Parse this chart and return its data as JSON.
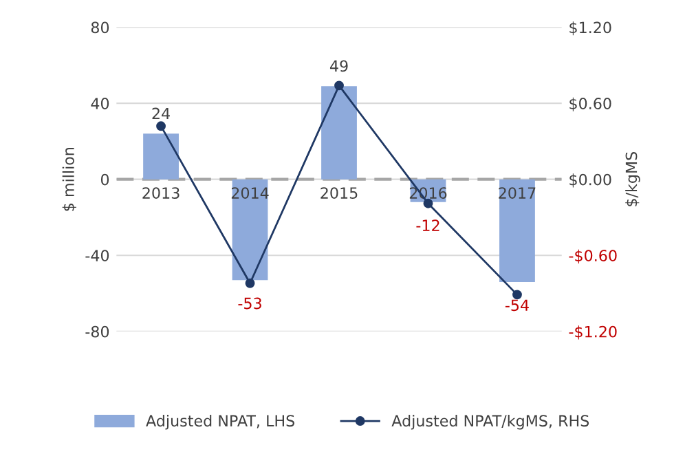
{
  "chart_data": {
    "type": "bar",
    "categories": [
      "2013",
      "2014",
      "2015",
      "2016",
      "2017"
    ],
    "ylabel": "$ million",
    "y2label": "$/kgMS",
    "series": [
      {
        "name": "Adjusted NPAT, LHS",
        "color": "#8eaadb",
        "values": [
          24,
          -53,
          49,
          -12,
          -54
        ],
        "data_labels": true
      },
      {
        "name": "Adjusted NPAT/kgMS, RHS",
        "type": "line",
        "axis": "y2",
        "color": "#1f3864",
        "marker": "circle",
        "values": [
          0.42,
          -0.82,
          0.74,
          -0.19,
          -0.91
        ]
      }
    ],
    "ylim": [
      -80,
      80
    ],
    "yticks": [
      -80,
      -40,
      0,
      40,
      80
    ],
    "y2lim": [
      -1.2,
      1.2
    ],
    "y2ticks": [
      {
        "value": -1.2,
        "label": "-$1.20"
      },
      {
        "value": -0.6,
        "label": "-$0.60"
      },
      {
        "value": 0,
        "label": "$0.00"
      },
      {
        "value": 0.6,
        "label": "$0.60"
      },
      {
        "value": 1.2,
        "label": "$1.20"
      }
    ],
    "ref_lines": [
      {
        "axis": "y",
        "value": 0,
        "color": "#a6a6a6",
        "line_style": "dashed"
      }
    ],
    "grid": "y",
    "legend": "bottom"
  }
}
